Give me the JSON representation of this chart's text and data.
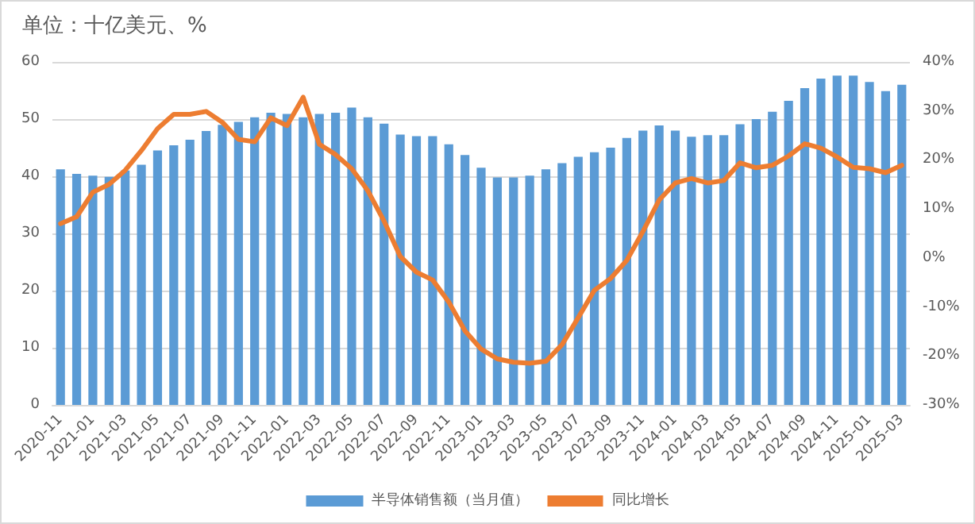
{
  "chart_data": {
    "type": "bar",
    "title": "单位：十亿美元、%",
    "categories": [
      "2020-11",
      null,
      "2021-01",
      null,
      "2021-03",
      null,
      "2021-05",
      null,
      "2021-07",
      null,
      "2021-09",
      null,
      "2021-11",
      null,
      "2022-01",
      null,
      "2022-03",
      null,
      "2022-05",
      null,
      "2022-07",
      null,
      "2022-09",
      null,
      "2022-11",
      null,
      "2023-01",
      null,
      "2023-03",
      null,
      "2023-05",
      null,
      "2023-07",
      null,
      "2023-09",
      null,
      "2023-11",
      null,
      "2024-01",
      null,
      "2024-03",
      null,
      "2024-05",
      null,
      "2024-07",
      null,
      "2024-09",
      null,
      "2024-11",
      null,
      "2025-01",
      null,
      "2025-03"
    ],
    "series": [
      {
        "name": "半导体销售额（当月值）",
        "color": "#5b9bd5",
        "values": [
          41.2,
          40.4,
          40.1,
          39.9,
          41.0,
          42.0,
          44.5,
          45.4,
          46.4,
          47.9,
          49.0,
          49.5,
          50.3,
          51.1,
          50.9,
          50.3,
          50.9,
          51.1,
          52.0,
          50.3,
          49.2,
          47.3,
          47.0,
          47.0,
          45.6,
          43.7,
          41.5,
          39.8,
          39.8,
          40.1,
          41.2,
          42.3,
          43.4,
          44.2,
          45.0,
          46.7,
          48.0,
          48.9,
          48.0,
          46.9,
          47.2,
          47.2,
          49.1,
          50.0,
          51.3,
          53.2,
          55.4,
          57.1,
          57.6,
          57.6,
          56.5,
          54.9,
          56.0
        ]
      },
      {
        "name": "同比增长",
        "type": "line",
        "axis": "y2",
        "color": "#ed7d31",
        "values": [
          7.0,
          8.4,
          13.4,
          15.0,
          17.9,
          21.9,
          26.4,
          29.3,
          29.3,
          29.9,
          27.7,
          24.2,
          23.7,
          28.6,
          27.0,
          32.8,
          23.2,
          21.1,
          18.2,
          13.7,
          7.5,
          0.3,
          -2.9,
          -4.5,
          -9.0,
          -14.9,
          -18.6,
          -20.6,
          -21.3,
          -21.5,
          -21.1,
          -17.7,
          -12.2,
          -6.6,
          -4.2,
          -0.5,
          5.4,
          11.8,
          15.3,
          16.2,
          15.3,
          15.8,
          19.4,
          18.4,
          18.9,
          20.8,
          23.3,
          22.4,
          20.6,
          18.5,
          18.2,
          17.4,
          18.9
        ]
      }
    ],
    "ylim": [
      0,
      60
    ],
    "yticks": [
      0,
      10,
      20,
      30,
      40,
      50,
      60
    ],
    "y2lim": [
      -30,
      40
    ],
    "y2ticks": [
      {
        "value": -30,
        "label": "-30%"
      },
      {
        "value": -20,
        "label": "-20%"
      },
      {
        "value": -10,
        "label": "-10%"
      },
      {
        "value": 0,
        "label": "0%"
      },
      {
        "value": 10,
        "label": "10%"
      },
      {
        "value": 20,
        "label": "20%"
      },
      {
        "value": 30,
        "label": "30%"
      },
      {
        "value": 40,
        "label": "40%"
      }
    ],
    "grid": "y",
    "legend": "bottom",
    "marker": "none",
    "line_style": "solid"
  }
}
